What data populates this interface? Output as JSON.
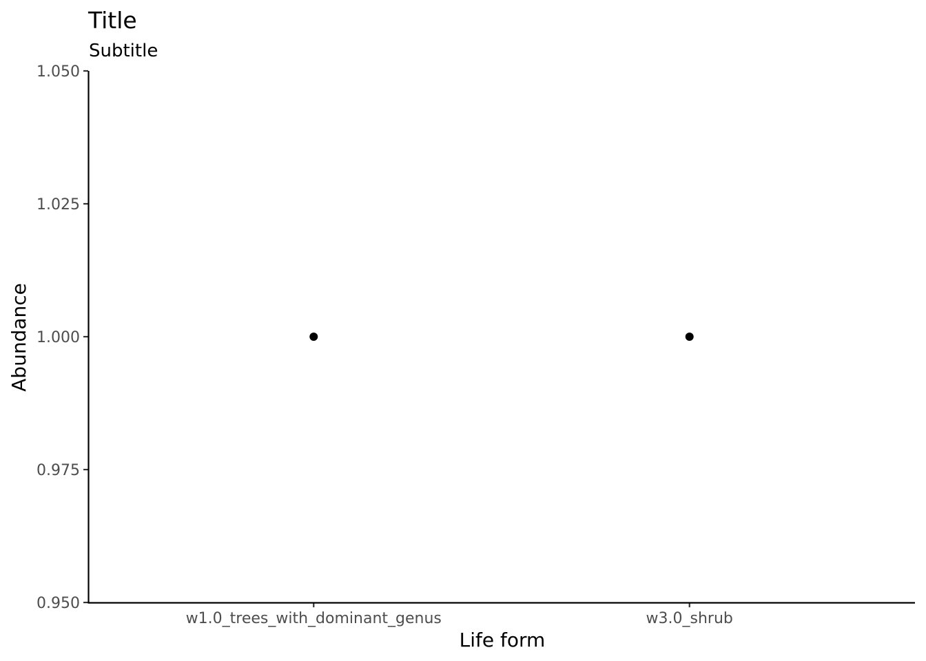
{
  "chart_data": {
    "type": "scatter",
    "title": "Title",
    "subtitle": "Subtitle",
    "xlabel": "Life form",
    "ylabel": "Abundance",
    "categories": [
      "w1.0_trees_with_dominant_genus",
      "w3.0_shrub"
    ],
    "values": [
      1.0,
      1.0
    ],
    "ylim": [
      0.95,
      1.05
    ],
    "yticks": [
      "0.950",
      "0.975",
      "1.000",
      "1.025",
      "1.050"
    ],
    "grid": false,
    "point_color": "#000000"
  }
}
